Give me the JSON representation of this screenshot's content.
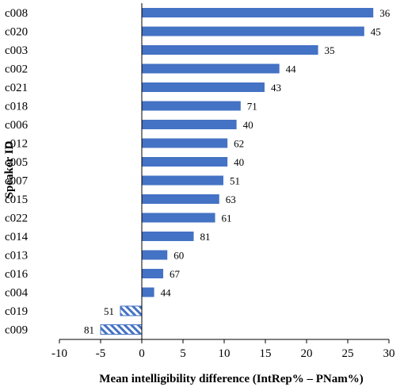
{
  "chart_data": {
    "type": "bar",
    "orientation": "horizontal",
    "ylabel": "Speaker ID",
    "xlabel": "Mean intelligibility difference (IntRep% – PNam%)",
    "xlim": [
      -10,
      30
    ],
    "xticks": [
      -10,
      -5,
      0,
      5,
      10,
      15,
      20,
      25,
      30
    ],
    "grid": false,
    "legend": "none",
    "categories": [
      "c008",
      "c020",
      "c003",
      "c002",
      "c021",
      "c018",
      "c006",
      "c012",
      "c005",
      "c007",
      "c015",
      "c022",
      "c014",
      "c013",
      "c016",
      "c004",
      "c019",
      "c009"
    ],
    "values": [
      28.1,
      27.0,
      21.4,
      16.7,
      14.9,
      12.0,
      11.5,
      10.4,
      10.4,
      9.9,
      9.4,
      8.9,
      6.3,
      3.1,
      2.6,
      1.5,
      -2.6,
      -5.0
    ],
    "data_labels": [
      "36",
      "45",
      "35",
      "44",
      "43",
      "71",
      "40",
      "62",
      "40",
      "51",
      "63",
      "61",
      "81",
      "60",
      "67",
      "44",
      "51",
      "81"
    ],
    "colors": {
      "positive": "#4472C4",
      "negative_hatch": "#4472C4",
      "negative_bg": "#ffffff"
    }
  }
}
